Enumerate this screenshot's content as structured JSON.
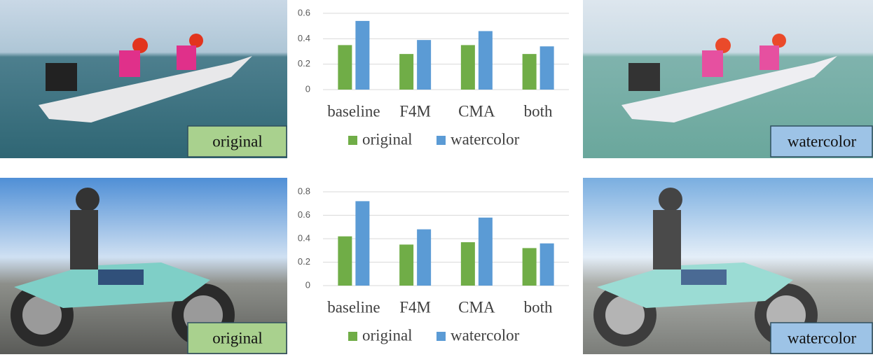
{
  "chart_data": [
    {
      "type": "bar",
      "categories": [
        "baseline",
        "F4M",
        "CMA",
        "both"
      ],
      "series": [
        {
          "name": "original",
          "color": "#70ad47",
          "values": [
            0.35,
            0.28,
            0.35,
            0.28
          ]
        },
        {
          "name": "watercolor",
          "color": "#5b9bd5",
          "values": [
            0.54,
            0.39,
            0.46,
            0.34
          ]
        }
      ],
      "ylim": [
        0,
        0.6
      ],
      "yticks": [
        0,
        0.2,
        0.4,
        0.6
      ],
      "grid": true
    },
    {
      "type": "bar",
      "categories": [
        "baseline",
        "F4M",
        "CMA",
        "both"
      ],
      "series": [
        {
          "name": "original",
          "color": "#70ad47",
          "values": [
            0.42,
            0.35,
            0.37,
            0.32
          ]
        },
        {
          "name": "watercolor",
          "color": "#5b9bd5",
          "values": [
            0.72,
            0.48,
            0.58,
            0.36
          ]
        }
      ],
      "ylim": [
        0,
        0.8
      ],
      "yticks": [
        0,
        0.2,
        0.4,
        0.6,
        0.8
      ],
      "grid": true
    }
  ],
  "images": [
    {
      "label": "original"
    },
    {
      "label": "watercolor"
    },
    {
      "label": "original"
    },
    {
      "label": "watercolor"
    }
  ]
}
